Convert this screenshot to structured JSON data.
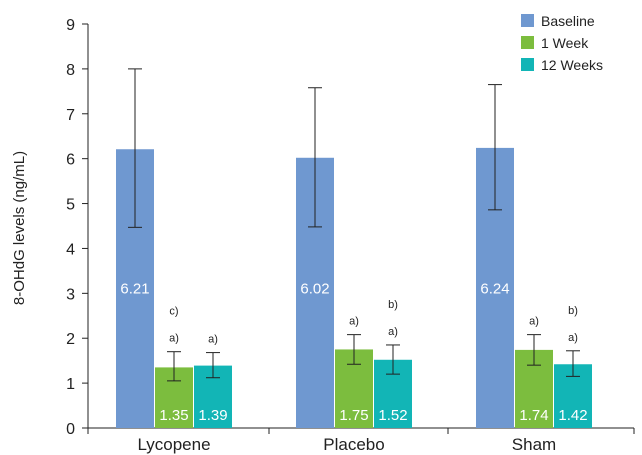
{
  "chart_data": {
    "type": "bar",
    "title": "",
    "xlabel": "",
    "ylabel": "8-OHdG levels (ng/mL)",
    "ylim": [
      0,
      9
    ],
    "yticks": [
      0,
      1,
      2,
      3,
      4,
      5,
      6,
      7,
      8,
      9
    ],
    "grid": false,
    "legend_position": "top-right",
    "categories": [
      "Lycopene",
      "Placebo",
      "Sham"
    ],
    "series": [
      {
        "name": "Baseline",
        "color": "#6f98d0",
        "values": [
          6.21,
          6.02,
          6.24
        ],
        "value_labels": [
          "6.21",
          "6.02",
          "6.24"
        ],
        "error": [
          [
            4.47,
            8.0
          ],
          [
            4.48,
            7.58
          ],
          [
            4.86,
            7.65
          ]
        ],
        "sig_labels": [
          [],
          [],
          []
        ]
      },
      {
        "name": "1 Week",
        "color": "#7cbd3e",
        "values": [
          1.35,
          1.75,
          1.74
        ],
        "value_labels": [
          "1.35",
          "1.75",
          "1.74"
        ],
        "error": [
          [
            1.05,
            1.7
          ],
          [
            1.42,
            2.08
          ],
          [
            1.4,
            2.08
          ]
        ],
        "sig_labels": [
          [
            "c)",
            "a)"
          ],
          [
            "a)"
          ],
          [
            "a)"
          ]
        ]
      },
      {
        "name": "12 Weeks",
        "color": "#12b5b6",
        "values": [
          1.39,
          1.52,
          1.42
        ],
        "value_labels": [
          "1.39",
          "1.52",
          "1.42"
        ],
        "error": [
          [
            1.12,
            1.68
          ],
          [
            1.2,
            1.85
          ],
          [
            1.15,
            1.72
          ]
        ],
        "sig_labels": [
          [
            "a)"
          ],
          [
            "b)",
            "a)"
          ],
          [
            "b)",
            "a)"
          ]
        ]
      }
    ]
  }
}
